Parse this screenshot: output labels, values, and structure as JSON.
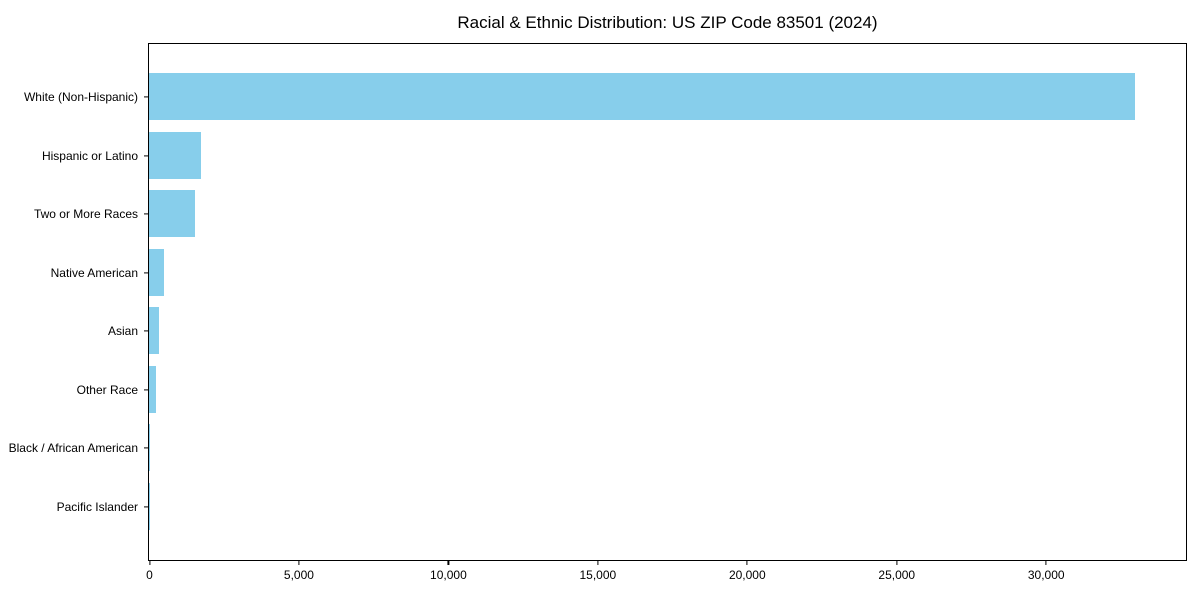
{
  "chart_data": {
    "type": "bar",
    "orientation": "horizontal",
    "title": "Racial & Ethnic Distribution: US ZIP Code 83501 (2024)",
    "xlabel": "",
    "ylabel": "",
    "categories": [
      "White (Non-Hispanic)",
      "Hispanic or Latino",
      "Two or More Races",
      "Native American",
      "Asian",
      "Other Race",
      "Black / African American",
      "Pacific Islander"
    ],
    "values": [
      33000,
      1740,
      1540,
      500,
      340,
      240,
      40,
      15
    ],
    "xlim": [
      0,
      34660
    ],
    "x_ticks": [
      {
        "value": 0,
        "label": "0"
      },
      {
        "value": 5000,
        "label": "5,000"
      },
      {
        "value": 10000,
        "label": "10,000"
      },
      {
        "value": 15000,
        "label": "15,000"
      },
      {
        "value": 20000,
        "label": "20,000"
      },
      {
        "value": 25000,
        "label": "25,000"
      },
      {
        "value": 30000,
        "label": "30,000"
      }
    ],
    "bar_color": "#87CEEB",
    "spine_color": "#000000",
    "text_color": "#000000",
    "background_color": "#ffffff",
    "grid": "off",
    "legend": "none"
  }
}
